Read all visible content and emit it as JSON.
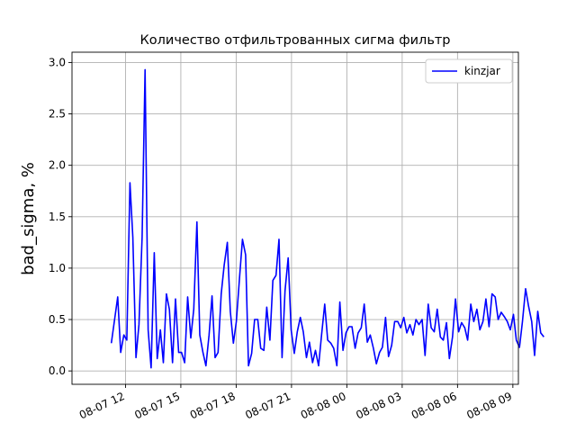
{
  "chart_data": {
    "type": "line",
    "title": "Количество отфильтрованных сигма фильтр",
    "xlabel": "",
    "ylabel": "bad_sigma, %",
    "x_unit": "hours",
    "x_range": [
      9.1,
      33.3
    ],
    "ylim": [
      -0.13,
      3.1
    ],
    "grid": true,
    "legend": "top-right",
    "x_ticks": [
      {
        "x": 12,
        "label": "08-07 12"
      },
      {
        "x": 15,
        "label": "08-07 15"
      },
      {
        "x": 18,
        "label": "08-07 18"
      },
      {
        "x": 21,
        "label": "08-07 21"
      },
      {
        "x": 24,
        "label": "08-08 00"
      },
      {
        "x": 27,
        "label": "08-08 03"
      },
      {
        "x": 30,
        "label": "08-08 06"
      },
      {
        "x": 33,
        "label": "08-08 09"
      }
    ],
    "y_ticks": [
      0.0,
      0.5,
      1.0,
      1.5,
      2.0,
      2.5,
      3.0
    ],
    "y_tick_labels": [
      "0.0",
      "0.5",
      "1.0",
      "1.5",
      "2.0",
      "2.5",
      "3.0"
    ],
    "series": [
      {
        "name": "kinzjar",
        "color": "#0000ff",
        "points": [
          [
            11.23,
            0.27
          ],
          [
            11.58,
            0.72
          ],
          [
            11.74,
            0.18
          ],
          [
            11.91,
            0.35
          ],
          [
            12.07,
            0.3
          ],
          [
            12.24,
            1.83
          ],
          [
            12.4,
            1.3
          ],
          [
            12.57,
            0.13
          ],
          [
            12.73,
            0.45
          ],
          [
            12.9,
            1.3
          ],
          [
            13.06,
            2.93
          ],
          [
            13.23,
            0.4
          ],
          [
            13.39,
            0.03
          ],
          [
            13.56,
            1.15
          ],
          [
            13.72,
            0.12
          ],
          [
            13.89,
            0.4
          ],
          [
            14.05,
            0.08
          ],
          [
            14.22,
            0.75
          ],
          [
            14.38,
            0.6
          ],
          [
            14.55,
            0.08
          ],
          [
            14.71,
            0.7
          ],
          [
            14.88,
            0.18
          ],
          [
            15.04,
            0.18
          ],
          [
            15.21,
            0.08
          ],
          [
            15.37,
            0.72
          ],
          [
            15.54,
            0.32
          ],
          [
            15.7,
            0.6
          ],
          [
            15.87,
            1.45
          ],
          [
            16.03,
            0.35
          ],
          [
            16.2,
            0.18
          ],
          [
            16.36,
            0.05
          ],
          [
            16.53,
            0.35
          ],
          [
            16.69,
            0.73
          ],
          [
            16.86,
            0.13
          ],
          [
            17.02,
            0.18
          ],
          [
            17.19,
            0.75
          ],
          [
            17.35,
            1.03
          ],
          [
            17.52,
            1.25
          ],
          [
            17.68,
            0.58
          ],
          [
            17.85,
            0.27
          ],
          [
            18.01,
            0.48
          ],
          [
            18.18,
            0.9
          ],
          [
            18.34,
            1.28
          ],
          [
            18.51,
            1.13
          ],
          [
            18.67,
            0.05
          ],
          [
            18.84,
            0.17
          ],
          [
            19.0,
            0.5
          ],
          [
            19.17,
            0.5
          ],
          [
            19.33,
            0.22
          ],
          [
            19.5,
            0.2
          ],
          [
            19.66,
            0.62
          ],
          [
            19.83,
            0.3
          ],
          [
            19.99,
            0.88
          ],
          [
            20.16,
            0.93
          ],
          [
            20.32,
            1.28
          ],
          [
            20.49,
            0.13
          ],
          [
            20.65,
            0.78
          ],
          [
            20.82,
            1.1
          ],
          [
            20.98,
            0.4
          ],
          [
            21.15,
            0.17
          ],
          [
            21.31,
            0.38
          ],
          [
            21.48,
            0.52
          ],
          [
            21.64,
            0.38
          ],
          [
            21.81,
            0.13
          ],
          [
            21.97,
            0.28
          ],
          [
            22.14,
            0.08
          ],
          [
            22.3,
            0.2
          ],
          [
            22.47,
            0.05
          ],
          [
            22.63,
            0.35
          ],
          [
            22.8,
            0.65
          ],
          [
            22.96,
            0.3
          ],
          [
            23.13,
            0.27
          ],
          [
            23.29,
            0.22
          ],
          [
            23.46,
            0.05
          ],
          [
            23.62,
            0.67
          ],
          [
            23.79,
            0.2
          ],
          [
            23.95,
            0.37
          ],
          [
            24.12,
            0.43
          ],
          [
            24.28,
            0.43
          ],
          [
            24.45,
            0.22
          ],
          [
            24.61,
            0.37
          ],
          [
            24.78,
            0.42
          ],
          [
            24.94,
            0.65
          ],
          [
            25.11,
            0.28
          ],
          [
            25.27,
            0.35
          ],
          [
            25.44,
            0.22
          ],
          [
            25.6,
            0.07
          ],
          [
            25.77,
            0.18
          ],
          [
            25.93,
            0.23
          ],
          [
            26.1,
            0.52
          ],
          [
            26.26,
            0.14
          ],
          [
            26.43,
            0.25
          ],
          [
            26.59,
            0.48
          ],
          [
            26.76,
            0.48
          ],
          [
            26.92,
            0.42
          ],
          [
            27.09,
            0.52
          ],
          [
            27.25,
            0.37
          ],
          [
            27.42,
            0.45
          ],
          [
            27.58,
            0.35
          ],
          [
            27.75,
            0.5
          ],
          [
            27.91,
            0.45
          ],
          [
            28.08,
            0.5
          ],
          [
            28.24,
            0.15
          ],
          [
            28.41,
            0.65
          ],
          [
            28.57,
            0.42
          ],
          [
            28.74,
            0.38
          ],
          [
            28.9,
            0.6
          ],
          [
            29.07,
            0.33
          ],
          [
            29.23,
            0.3
          ],
          [
            29.4,
            0.47
          ],
          [
            29.56,
            0.12
          ],
          [
            29.73,
            0.33
          ],
          [
            29.89,
            0.7
          ],
          [
            30.06,
            0.38
          ],
          [
            30.22,
            0.47
          ],
          [
            30.39,
            0.42
          ],
          [
            30.55,
            0.3
          ],
          [
            30.72,
            0.65
          ],
          [
            30.88,
            0.48
          ],
          [
            31.05,
            0.6
          ],
          [
            31.21,
            0.4
          ],
          [
            31.38,
            0.48
          ],
          [
            31.54,
            0.7
          ],
          [
            31.71,
            0.43
          ],
          [
            31.87,
            0.75
          ],
          [
            32.04,
            0.72
          ],
          [
            32.2,
            0.5
          ],
          [
            32.37,
            0.57
          ],
          [
            32.53,
            0.53
          ],
          [
            32.7,
            0.48
          ],
          [
            32.86,
            0.4
          ],
          [
            33.03,
            0.55
          ],
          [
            33.19,
            0.3
          ],
          [
            33.36,
            0.23
          ],
          [
            33.52,
            0.48
          ],
          [
            33.69,
            0.8
          ],
          [
            33.85,
            0.63
          ],
          [
            34.02,
            0.48
          ],
          [
            34.18,
            0.15
          ],
          [
            34.35,
            0.58
          ],
          [
            34.51,
            0.37
          ],
          [
            34.68,
            0.33
          ]
        ]
      }
    ]
  }
}
